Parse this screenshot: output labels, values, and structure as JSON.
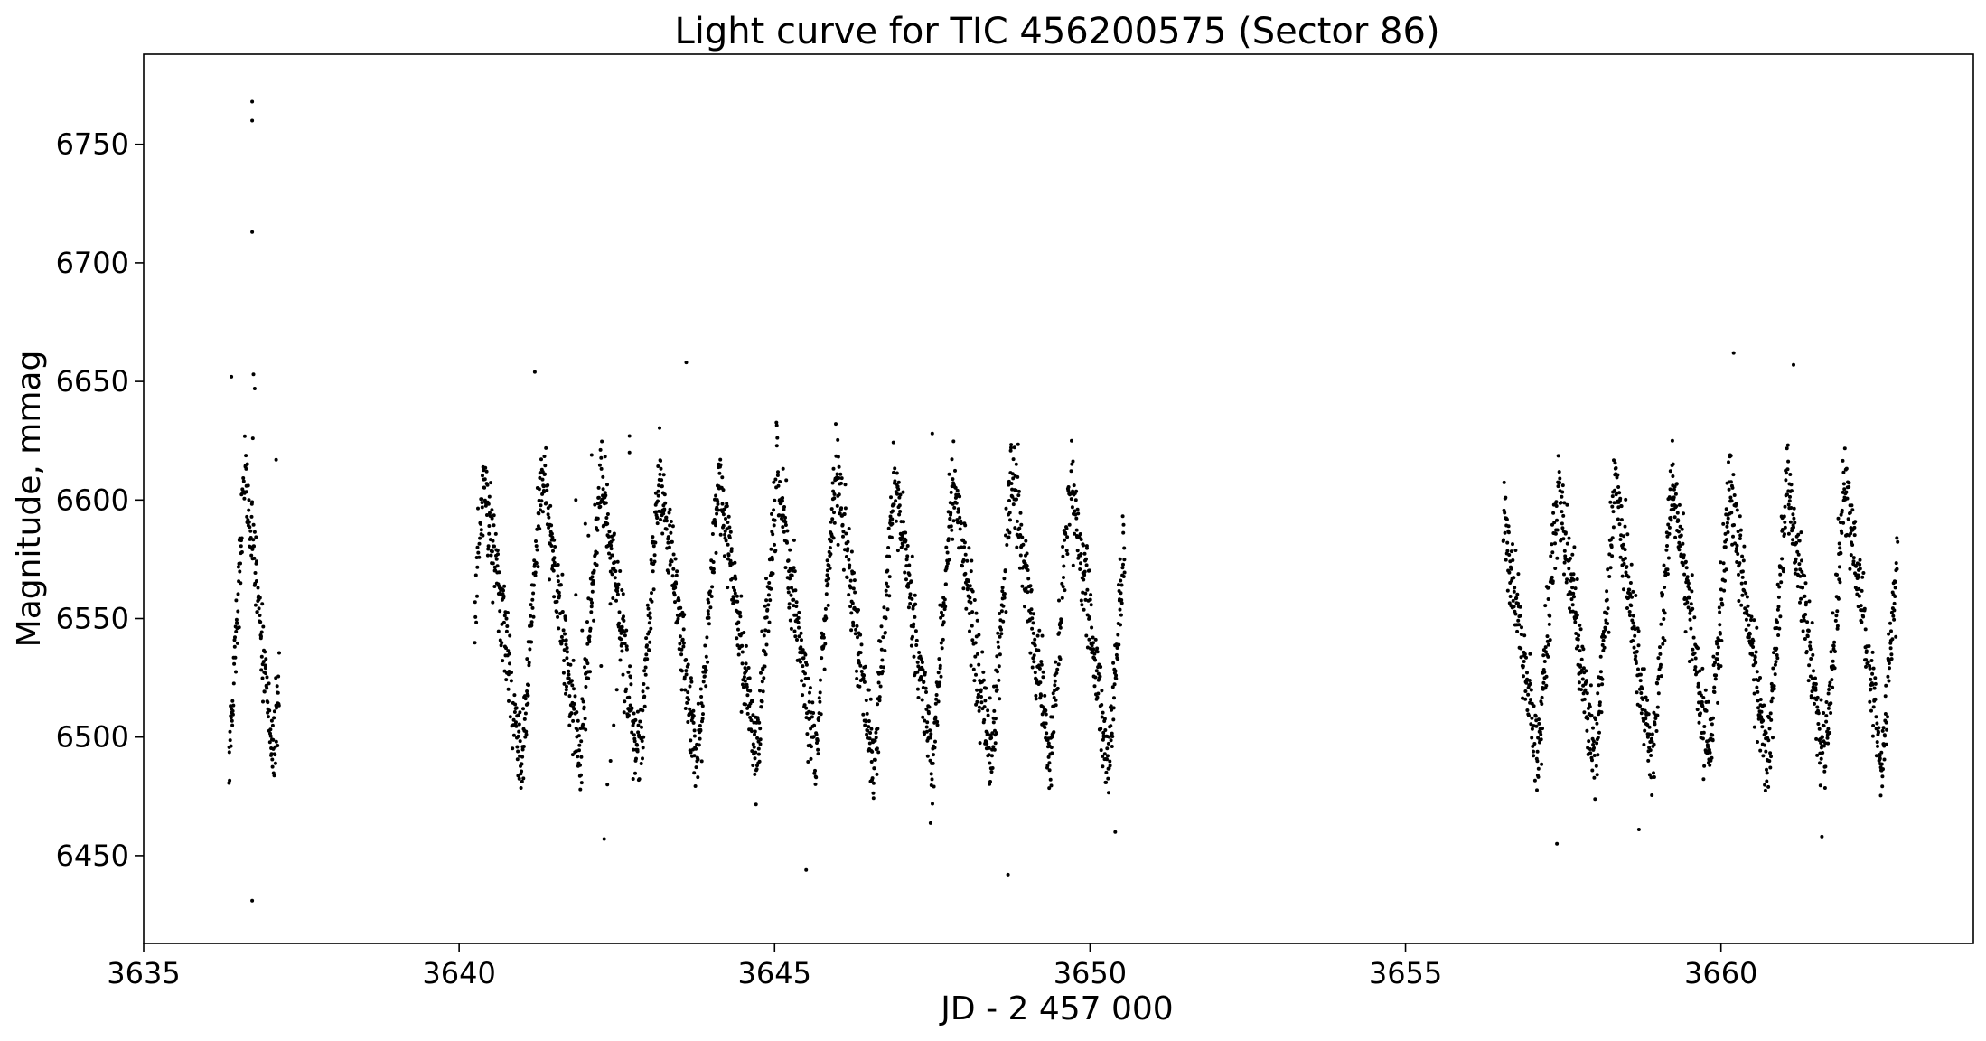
{
  "chart_data": {
    "type": "scatter",
    "title": "Light curve for TIC 456200575 (Sector 86)",
    "xlabel": "JD - 2 457 000",
    "ylabel": "Magnitude, mmag",
    "xlim": [
      3635.0,
      3664.0
    ],
    "ylim": [
      6413,
      6788
    ],
    "x_ticks": [
      3635,
      3640,
      3645,
      3650,
      3655,
      3660
    ],
    "x_tick_labels": [
      "3635",
      "3640",
      "3645",
      "3650",
      "3655",
      "3660"
    ],
    "y_ticks": [
      6450,
      6500,
      6550,
      6600,
      6650,
      6700,
      6750
    ],
    "y_tick_labels": [
      "6450",
      "6500",
      "6550",
      "6600",
      "6650",
      "6700",
      "6750"
    ],
    "grid": false,
    "marker_color": "#000000",
    "segments": [
      {
        "x_start": 3636.35,
        "x_end": 3637.15,
        "mean": 6550,
        "amplitude": 60,
        "period": 0.72,
        "phase": 0.0,
        "scatter": 9
      },
      {
        "x_start": 3640.25,
        "x_end": 3650.55,
        "mean": 6550,
        "amplitude": 62,
        "period": 0.93,
        "phase": 1.2,
        "scatter": 9
      },
      {
        "x_start": 3656.55,
        "x_end": 3662.8,
        "mean": 6548,
        "amplitude": 60,
        "period": 0.91,
        "phase": 0.4,
        "scatter": 9
      }
    ],
    "outliers": [
      {
        "x": 3636.72,
        "y": 6768
      },
      {
        "x": 3636.72,
        "y": 6760
      },
      {
        "x": 3636.72,
        "y": 6713
      },
      {
        "x": 3636.74,
        "y": 6653
      },
      {
        "x": 3636.76,
        "y": 6647
      },
      {
        "x": 3636.73,
        "y": 6626
      },
      {
        "x": 3636.72,
        "y": 6431
      },
      {
        "x": 3636.39,
        "y": 6652
      },
      {
        "x": 3637.1,
        "y": 6617
      },
      {
        "x": 3641.2,
        "y": 6654
      },
      {
        "x": 3642.1,
        "y": 6619
      },
      {
        "x": 3642.7,
        "y": 6627
      },
      {
        "x": 3642.7,
        "y": 6620
      },
      {
        "x": 3642.3,
        "y": 6457
      },
      {
        "x": 3641.85,
        "y": 6600
      },
      {
        "x": 3648.7,
        "y": 6442
      },
      {
        "x": 3650.4,
        "y": 6460
      },
      {
        "x": 3643.6,
        "y": 6658
      },
      {
        "x": 3645.5,
        "y": 6444
      },
      {
        "x": 3647.5,
        "y": 6628
      },
      {
        "x": 3661.15,
        "y": 6657
      },
      {
        "x": 3660.2,
        "y": 6662
      },
      {
        "x": 3658.7,
        "y": 6461
      },
      {
        "x": 3657.4,
        "y": 6455
      },
      {
        "x": 3661.6,
        "y": 6458
      }
    ]
  }
}
